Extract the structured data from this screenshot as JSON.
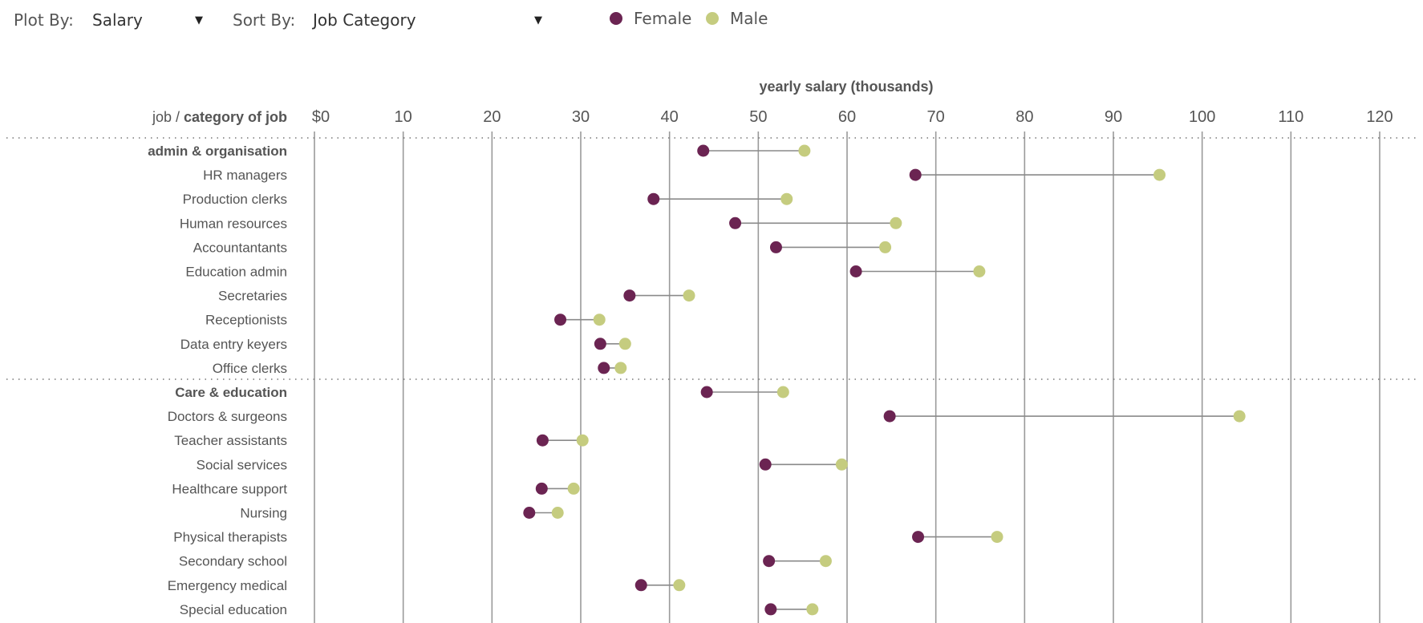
{
  "controls": {
    "plot_by_label": "Plot By:",
    "plot_by_value": "Salary",
    "sort_by_label": "Sort By:",
    "sort_by_value": "Job Category",
    "caret": "▼"
  },
  "colors": {
    "female": "#6b2452",
    "male": "#c5cc7f",
    "grid": "#9a9a9a",
    "connector": "#8a8a8a"
  },
  "chart_data": {
    "type": "dumbbell",
    "title": "yearly salary (thousands)",
    "row_header_left": "job /",
    "row_header_right": "category of job",
    "x_ticks": [
      "$0",
      "10",
      "20",
      "30",
      "40",
      "50",
      "60",
      "70",
      "80",
      "90",
      "100",
      "110",
      "120"
    ],
    "xlim": [
      0,
      120
    ],
    "legend": [
      "Female",
      "Male"
    ],
    "rows": [
      {
        "label": "admin & organisation",
        "category": true,
        "female": 43.8,
        "male": 55.2
      },
      {
        "label": "HR managers",
        "category": false,
        "female": 67.7,
        "male": 95.2
      },
      {
        "label": "Production clerks",
        "category": false,
        "female": 38.2,
        "male": 53.2
      },
      {
        "label": "Human resources",
        "category": false,
        "female": 47.4,
        "male": 65.5
      },
      {
        "label": "Accountantants",
        "category": false,
        "female": 52.0,
        "male": 64.3
      },
      {
        "label": "Education admin",
        "category": false,
        "female": 61.0,
        "male": 74.9
      },
      {
        "label": "Secretaries",
        "category": false,
        "female": 35.5,
        "male": 42.2
      },
      {
        "label": "Receptionists",
        "category": false,
        "female": 27.7,
        "male": 32.1
      },
      {
        "label": "Data entry keyers",
        "category": false,
        "female": 32.2,
        "male": 35.0
      },
      {
        "label": "Office clerks",
        "category": false,
        "female": 32.6,
        "male": 34.5
      },
      {
        "label": "Care & education",
        "category": true,
        "female": 44.2,
        "male": 52.8
      },
      {
        "label": "Doctors & surgeons",
        "category": false,
        "female": 64.8,
        "male": 104.2
      },
      {
        "label": "Teacher assistants",
        "category": false,
        "female": 25.7,
        "male": 30.2
      },
      {
        "label": "Social services",
        "category": false,
        "female": 50.8,
        "male": 59.4
      },
      {
        "label": "Healthcare support",
        "category": false,
        "female": 25.6,
        "male": 29.2
      },
      {
        "label": "Nursing",
        "category": false,
        "female": 24.2,
        "male": 27.4
      },
      {
        "label": "Physical therapists",
        "category": false,
        "female": 68.0,
        "male": 76.9
      },
      {
        "label": "Secondary school",
        "category": false,
        "female": 51.2,
        "male": 57.6
      },
      {
        "label": "Emergency medical",
        "category": false,
        "female": 36.8,
        "male": 41.1
      },
      {
        "label": "Special education",
        "category": false,
        "female": 51.4,
        "male": 56.1
      }
    ]
  }
}
